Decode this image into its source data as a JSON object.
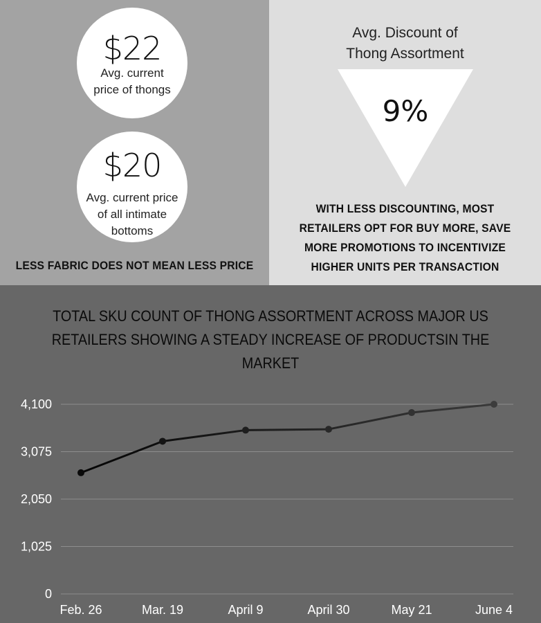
{
  "top_left": {
    "stat1": {
      "value": "$22",
      "label_line1": "Avg. current",
      "label_line2": "price of thongs"
    },
    "stat2": {
      "value": "$20",
      "label_line1": "Avg. current price",
      "label_line2": "of all intimate",
      "label_line3": "bottoms"
    },
    "caption": "LESS FABRIC DOES NOT MEAN LESS PRICE"
  },
  "top_right": {
    "title_line1": "Avg. Discount of",
    "title_line2": "Thong Assortment",
    "value": "9%",
    "caption_lines": [
      "WITH LESS DISCOUNTING, MOST",
      "RETAILERS OPT FOR BUY MORE, SAVE",
      "MORE PROMOTIONS TO INCENTIVIZE",
      "HIGHER UNITS PER TRANSACTION"
    ]
  },
  "colors": {
    "left_panel": "#a3a3a3",
    "right_panel": "#dedede",
    "chart_panel": "#676767",
    "line": "#111111"
  },
  "chart_data": {
    "type": "line",
    "title_line1": "TOTAL SKU COUNT OF THONG ASSORTMENT ACROSS MAJOR US",
    "title_line2": "RETAILERS SHOWING A STEADY INCREASE OF PRODUCTSIN THE MARKET",
    "categories": [
      "Feb. 26",
      "Mar. 19",
      "April 9",
      "April 30",
      "May 21",
      "June 4"
    ],
    "values": [
      2620,
      3300,
      3540,
      3560,
      3920,
      4100
    ],
    "yticks": [
      0,
      1025,
      2050,
      3075,
      4100
    ],
    "ytick_labels": [
      "0",
      "1,025",
      "2,050",
      "3,075",
      "4,100"
    ],
    "ylim": [
      0,
      4100
    ],
    "grid": true
  }
}
